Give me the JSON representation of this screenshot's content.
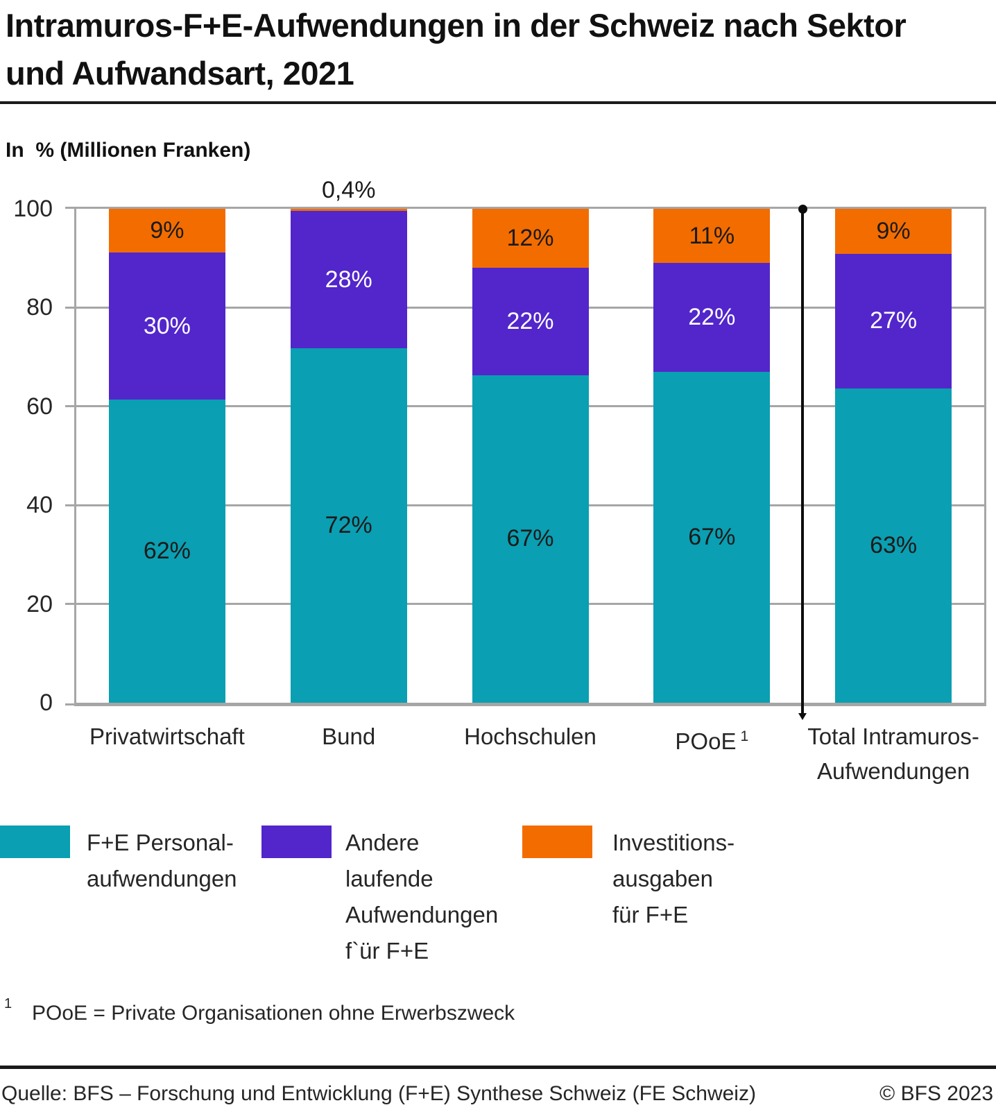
{
  "header": {
    "title": "Intramuros-F+E-Aufwendungen in der Schweiz nach Sektor und Aufwandsart, 2021",
    "unit_label": "In  % (Millionen Franken)"
  },
  "chart_data": {
    "type": "bar",
    "stacked": true,
    "title": "Intramuros-F+E-Aufwendungen in der Schweiz nach Sektor und Aufwandsart, 2021",
    "unit_label": "In  % (Millionen Franken)",
    "categories": [
      {
        "label": "Privatwirtschaft"
      },
      {
        "label": "Bund"
      },
      {
        "label": "Hochschulen"
      },
      {
        "label": "POoE",
        "footnote_marker": "1"
      },
      {
        "label": "Total Intramuros-\nAufwendungen"
      }
    ],
    "series": [
      {
        "name": "F+E Personalaufwendungen",
        "color": "#0a9fb2",
        "label_color": "#1a1a1a",
        "values": [
          62,
          72,
          67,
          67,
          63
        ],
        "value_labels": [
          "62%",
          "72%",
          "67%",
          "67%",
          "63%"
        ]
      },
      {
        "name": "Andere laufende Aufwendungen für F+E",
        "color": "#5226cb",
        "label_color": "#ffffff",
        "values": [
          30,
          28,
          22,
          22,
          27
        ],
        "value_labels": [
          "30%",
          "28%",
          "22%",
          "22%",
          "27%"
        ]
      },
      {
        "name": "Investitionsausgaben für F+E",
        "color": "#f36c00",
        "label_color": "#1a1a1a",
        "values": [
          9,
          0.4,
          12,
          11,
          9
        ],
        "value_labels": [
          "9%",
          "0,4%",
          "12%",
          "11%",
          "9%"
        ]
      }
    ],
    "ylim": [
      0,
      100
    ],
    "yticks": [
      0,
      20,
      40,
      60,
      80,
      100
    ],
    "grid": true,
    "legend_position": "bottom",
    "separator": {
      "after_category_index": 3
    }
  },
  "legend": {
    "items": [
      {
        "label": "F+E Personal-\naufwendungen",
        "color": "#0a9fb2"
      },
      {
        "label": "Andere\nlaufende\nAufwendungen\nf`ür F+E",
        "color": "#5226cb"
      },
      {
        "label": "Investitions-\nausgaben\nfür F+E",
        "color": "#f36c00"
      }
    ]
  },
  "footnote": {
    "marker": "1",
    "text": "POoE = Private Organisationen ohne Erwerbszweck"
  },
  "footer": {
    "source": "Quelle: BFS – Forschung und Entwicklung (F+E) Synthese Schweiz (FE Schweiz)",
    "copyright": "© BFS 2023"
  },
  "colors": {
    "teal": "#0a9fb2",
    "purple": "#5226cb",
    "orange": "#f36c00",
    "grid": "#a6a6a6",
    "text": "#1a1a1a"
  }
}
